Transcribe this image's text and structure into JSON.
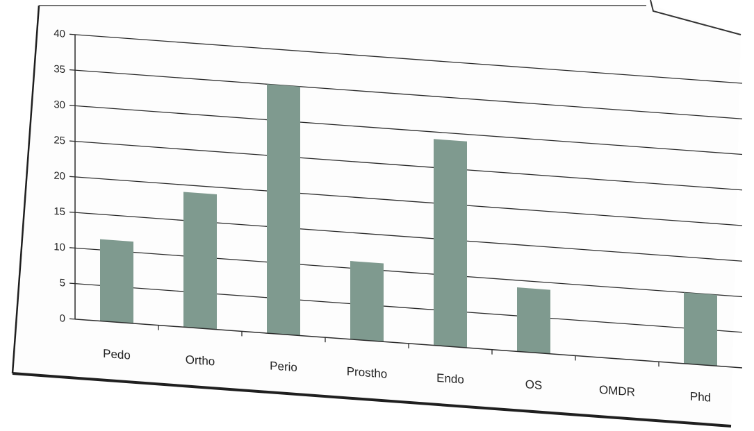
{
  "chart_data": {
    "type": "bar",
    "categories": [
      "Pedo",
      "Ortho",
      "Perio",
      "Prostho",
      "Endo",
      "OS",
      "OMDR",
      "Phd"
    ],
    "series": [
      {
        "values": [
          11.5,
          19,
          35,
          11,
          29,
          9,
          0,
          10
        ]
      }
    ],
    "y_ticks": [
      "0",
      "5",
      "10",
      "15",
      "20",
      "25",
      "30",
      "35",
      "40"
    ],
    "ylim": [
      0,
      40
    ],
    "grid": true,
    "legend": "none",
    "bar_color": "#7f9a8f",
    "grid_color": "#2b2b2b"
  }
}
